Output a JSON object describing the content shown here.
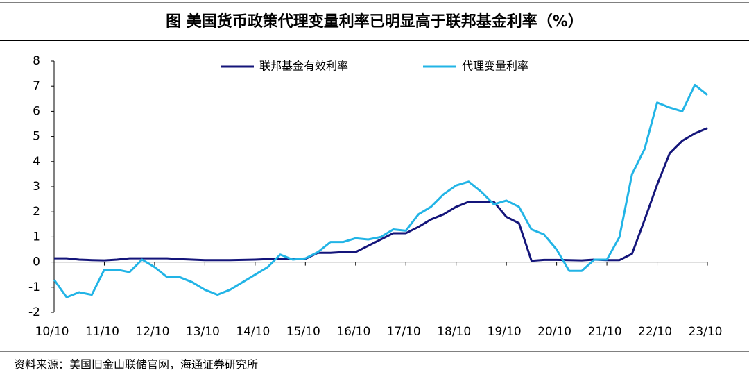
{
  "chart_data": {
    "type": "line",
    "title": "图  美国货币政策代理变量利率已明显高于联邦基金利率（%）",
    "source": "资料来源：美国旧金山联储官网，海通证券研究所",
    "categories": [
      "10/10",
      null,
      null,
      null,
      "11/10",
      null,
      null,
      null,
      "12/10",
      null,
      null,
      null,
      "13/10",
      null,
      null,
      null,
      "14/10",
      null,
      null,
      null,
      "15/10",
      null,
      null,
      null,
      "16/10",
      null,
      null,
      null,
      "17/10",
      null,
      null,
      null,
      "18/10",
      null,
      null,
      null,
      "19/10",
      null,
      null,
      null,
      "20/10",
      null,
      null,
      null,
      "21/10",
      null,
      null,
      null,
      "22/10",
      null,
      null,
      null,
      "23/10"
    ],
    "series": [
      {
        "name": "联邦基金有效利率",
        "color": "#14157a",
        "values": [
          0.15,
          0.15,
          0.1,
          0.08,
          0.07,
          0.1,
          0.15,
          0.15,
          0.15,
          0.15,
          0.12,
          0.1,
          0.08,
          0.08,
          0.08,
          0.09,
          0.1,
          0.12,
          0.13,
          0.13,
          0.13,
          0.37,
          0.37,
          0.4,
          0.4,
          0.65,
          0.9,
          1.15,
          1.15,
          1.4,
          1.7,
          1.9,
          2.2,
          2.4,
          2.4,
          2.4,
          1.8,
          1.55,
          0.05,
          0.09,
          0.09,
          0.08,
          0.07,
          0.1,
          0.08,
          0.08,
          0.33,
          1.68,
          3.08,
          4.33,
          4.83,
          5.12,
          5.33
        ]
      },
      {
        "name": "代理变量利率",
        "color": "#22b4e6",
        "values": [
          -0.7,
          -1.4,
          -1.2,
          -1.3,
          -0.3,
          -0.3,
          -0.4,
          0.1,
          -0.2,
          -0.6,
          -0.6,
          -0.8,
          -1.1,
          -1.3,
          -1.1,
          -0.8,
          -0.5,
          -0.2,
          0.3,
          0.1,
          0.15,
          0.4,
          0.8,
          0.8,
          0.95,
          0.9,
          1.0,
          1.3,
          1.25,
          1.9,
          2.2,
          2.7,
          3.05,
          3.2,
          2.8,
          2.3,
          2.45,
          2.2,
          1.3,
          1.1,
          0.5,
          -0.35,
          -0.35,
          0.1,
          0.1,
          1.0,
          3.5,
          4.5,
          6.35,
          6.15,
          6.0,
          7.05,
          6.65
        ]
      }
    ],
    "ylim": [
      -2,
      8
    ],
    "yticks": [
      -2,
      -1,
      0,
      1,
      2,
      3,
      4,
      5,
      6,
      7,
      8
    ],
    "grid": false
  }
}
